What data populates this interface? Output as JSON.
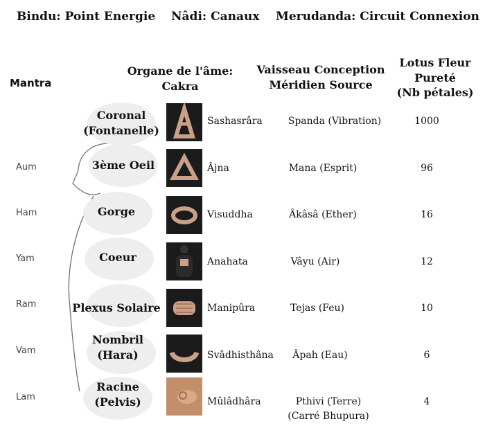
{
  "top_labels": [
    "Bindu: Point Energie",
    "Nâdi: Canaux",
    "Merudanda: Circuit Connexion"
  ],
  "headers": {
    "mantra": "Mantra",
    "organ_line1": "Organe de l'âme:",
    "organ_line2": "Cakra",
    "vessel_line1": "Vaisseau Conception",
    "vessel_line2": "Méridien Source",
    "lotus_line1": "Lotus Fleur",
    "lotus_line2": "Pureté",
    "lotus_line3": "(Nb pétales)"
  },
  "rows": [
    {
      "mantra": "",
      "location_line1": "Coronal",
      "location_line2": "(Fontanelle)",
      "chakra": "Sashasrâra",
      "element_line1": "Spanda (Vibration)",
      "element_line2": "",
      "petals": "1000",
      "photo_icon": "hands-pyramid-icon"
    },
    {
      "mantra": "Aum",
      "location_line1": "3ème Oeil",
      "location_line2": "",
      "chakra": "Âjna",
      "element_line1": "Mana (Esprit)",
      "element_line2": "",
      "petals": "96",
      "photo_icon": "hands-triangle-icon"
    },
    {
      "mantra": "Ham",
      "location_line1": "Gorge",
      "location_line2": "",
      "chakra": "Visuddha",
      "element_line1": "Âkâsâ (Ether)",
      "element_line2": "",
      "petals": "16",
      "photo_icon": "hands-circle-icon"
    },
    {
      "mantra": "Yam",
      "location_line1": "Coeur",
      "location_line2": "",
      "chakra": "Anahata",
      "element_line1": "Vâyu (Air)",
      "element_line2": "",
      "petals": "12",
      "photo_icon": "seated-figure-icon"
    },
    {
      "mantra": "Ram",
      "location_line1": "Plexus Solaire",
      "location_line2": "",
      "chakra": "Manipûra",
      "element_line1": "Tejas (Feu)",
      "element_line2": "",
      "petals": "10",
      "photo_icon": "hands-interlaced-icon"
    },
    {
      "mantra": "Vam",
      "location_line1": "Nombril",
      "location_line2": "(Hara)",
      "chakra": "Svâdhisthâna",
      "element_line1": "Âpah (Eau)",
      "element_line2": "",
      "petals": "6",
      "photo_icon": "hands-cupped-icon"
    },
    {
      "mantra": "Lam",
      "location_line1": "Racine",
      "location_line2": "(Pelvis)",
      "chakra": "Mûlâdhâra",
      "element_line1": "Pthivi (Terre)",
      "element_line2": "(Carré Bhupura)",
      "petals": "4",
      "photo_icon": "hand-mudra-icon"
    }
  ]
}
